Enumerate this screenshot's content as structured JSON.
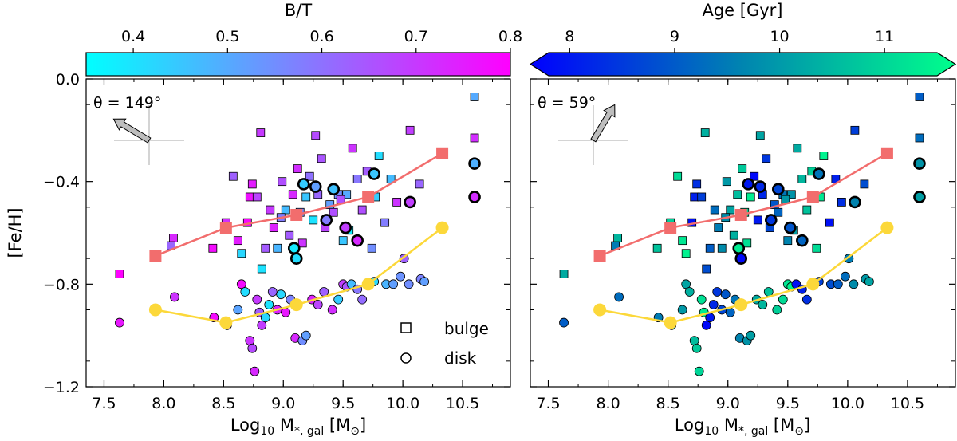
{
  "chart_data": [
    {
      "type": "scatter",
      "panel": "left",
      "xlabel_main": "Log",
      "xlabel_sub": "10",
      "xlabel_mid": " M",
      "xlabel_sub2": "*, gal",
      "xlabel_unit_open": " [M",
      "xlabel_unit_sub": "⊙",
      "xlabel_unit_close": "]",
      "ylabel": "[Fe/H]",
      "xlim": [
        7.35,
        10.9
      ],
      "ylim": [
        -1.2,
        0.0
      ],
      "xticks": [
        "7.5",
        "8.0",
        "8.5",
        "9.0",
        "9.5",
        "10.0",
        "10.5"
      ],
      "xtick_values": [
        7.5,
        8.0,
        8.5,
        9.0,
        9.5,
        10.0,
        10.5
      ],
      "yticks": [
        "0.0",
        "−0.4",
        "−0.8",
        "−1.2"
      ],
      "ytick_values": [
        0.0,
        -0.4,
        -0.8,
        -1.2
      ],
      "colorbar": {
        "label": "B/T",
        "ticks": [
          "0.4",
          "0.5",
          "0.6",
          "0.7",
          "0.8"
        ],
        "tick_values": [
          0.4,
          0.5,
          0.6,
          0.7,
          0.8
        ],
        "range": [
          0.35,
          0.8
        ],
        "colors": [
          "#00ffff",
          "#ff00ff"
        ],
        "extend": false
      },
      "annotation": "θ = 149°",
      "angle_deg": 149,
      "legend": [
        {
          "marker": "square",
          "label": "bulge"
        },
        {
          "marker": "circle",
          "label": "disk"
        }
      ],
      "bulge_points": [
        [
          7.63,
          -0.76,
          0.8
        ],
        [
          8.08,
          -0.62,
          0.73
        ],
        [
          8.41,
          -0.66,
          0.78
        ],
        [
          8.52,
          -0.56,
          0.72
        ],
        [
          8.58,
          -0.38,
          0.63
        ],
        [
          8.62,
          -0.63,
          0.75
        ],
        [
          8.65,
          -0.68,
          0.42
        ],
        [
          8.7,
          -0.56,
          0.79
        ],
        [
          8.72,
          -0.46,
          0.77
        ],
        [
          8.74,
          -0.41,
          0.75
        ],
        [
          8.78,
          -0.46,
          0.68
        ],
        [
          8.82,
          -0.74,
          0.4
        ],
        [
          8.85,
          -0.66,
          0.64
        ],
        [
          8.89,
          -0.51,
          0.7
        ],
        [
          8.92,
          -0.58,
          0.74
        ],
        [
          8.95,
          -0.66,
          0.48
        ],
        [
          8.99,
          -0.4,
          0.66
        ],
        [
          9.02,
          -0.51,
          0.47
        ],
        [
          9.05,
          -0.61,
          0.64
        ],
        [
          9.08,
          -0.45,
          0.73
        ],
        [
          9.12,
          -0.35,
          0.72
        ],
        [
          9.14,
          -0.52,
          0.55
        ],
        [
          9.16,
          -0.64,
          0.71
        ],
        [
          9.19,
          -0.46,
          0.45
        ],
        [
          9.22,
          -0.38,
          0.6
        ],
        [
          9.25,
          -0.55,
          0.4
        ],
        [
          9.29,
          -0.45,
          0.62
        ],
        [
          9.32,
          -0.31,
          0.65
        ],
        [
          9.35,
          -0.58,
          0.68
        ],
        [
          9.39,
          -0.49,
          0.52
        ],
        [
          9.42,
          -0.52,
          0.66
        ],
        [
          9.46,
          -0.45,
          0.55
        ],
        [
          9.5,
          -0.63,
          0.45
        ],
        [
          9.53,
          -0.45,
          0.5
        ],
        [
          9.55,
          -0.59,
          0.38
        ],
        [
          9.58,
          -0.27,
          0.71
        ],
        [
          9.62,
          -0.39,
          0.59
        ],
        [
          9.66,
          -0.51,
          0.66
        ],
        [
          9.7,
          -0.36,
          0.64
        ],
        [
          9.74,
          -0.66,
          0.55
        ],
        [
          9.77,
          -0.46,
          0.44
        ],
        [
          9.8,
          -0.3,
          0.41
        ],
        [
          9.85,
          -0.56,
          0.58
        ],
        [
          9.9,
          -0.39,
          0.47
        ],
        [
          9.95,
          -0.48,
          0.71
        ],
        [
          10.06,
          -0.2,
          0.69
        ],
        [
          10.14,
          -0.41,
          0.62
        ],
        [
          10.6,
          -0.07,
          0.5
        ],
        [
          10.6,
          -0.23,
          0.72
        ],
        [
          8.06,
          -0.65,
          0.62
        ],
        [
          8.98,
          -0.54,
          0.58
        ],
        [
          9.48,
          -0.47,
          0.66
        ],
        [
          9.27,
          -0.22,
          0.67
        ],
        [
          8.81,
          -0.21,
          0.7
        ]
      ],
      "disk_points": [
        [
          7.63,
          -0.95,
          0.76
        ],
        [
          8.09,
          -0.85,
          0.71
        ],
        [
          8.42,
          -0.93,
          0.78
        ],
        [
          8.53,
          -0.96,
          0.66
        ],
        [
          8.62,
          -0.9,
          0.51
        ],
        [
          8.65,
          -0.8,
          0.78
        ],
        [
          8.68,
          -0.83,
          0.41
        ],
        [
          8.72,
          -1.02,
          0.71
        ],
        [
          8.74,
          -1.05,
          0.67
        ],
        [
          8.76,
          -1.14,
          0.73
        ],
        [
          8.78,
          -0.86,
          0.7
        ],
        [
          8.8,
          -0.91,
          0.64
        ],
        [
          8.82,
          -0.96,
          0.69
        ],
        [
          8.85,
          -0.93,
          0.42
        ],
        [
          8.88,
          -0.88,
          0.4
        ],
        [
          8.91,
          -0.83,
          0.62
        ],
        [
          8.95,
          -0.9,
          0.74
        ],
        [
          8.98,
          -0.84,
          0.42
        ],
        [
          9.02,
          -0.91,
          0.76
        ],
        [
          9.06,
          -0.86,
          0.57
        ],
        [
          9.1,
          -1.01,
          0.73
        ],
        [
          9.16,
          -1.02,
          0.55
        ],
        [
          9.19,
          -1.0,
          0.52
        ],
        [
          9.24,
          -0.86,
          0.74
        ],
        [
          9.29,
          -0.88,
          0.68
        ],
        [
          9.34,
          -0.83,
          0.63
        ],
        [
          9.41,
          -0.9,
          0.72
        ],
        [
          9.46,
          -0.86,
          0.44
        ],
        [
          9.5,
          -0.8,
          0.69
        ],
        [
          9.53,
          -0.81,
          0.65
        ],
        [
          9.57,
          -0.8,
          0.47
        ],
        [
          9.62,
          -0.82,
          0.59
        ],
        [
          9.66,
          -0.86,
          0.61
        ],
        [
          9.76,
          -0.79,
          0.42
        ],
        [
          9.86,
          -0.8,
          0.48
        ],
        [
          9.92,
          -0.8,
          0.52
        ],
        [
          9.98,
          -0.77,
          0.54
        ],
        [
          10.01,
          -0.7,
          0.63
        ],
        [
          10.05,
          -0.8,
          0.55
        ],
        [
          10.15,
          -0.78,
          0.57
        ],
        [
          10.18,
          -0.79,
          0.52
        ]
      ],
      "disk_outlined": [
        [
          9.09,
          -0.66,
          0.39
        ],
        [
          9.11,
          -0.7,
          0.41
        ],
        [
          9.17,
          -0.41,
          0.44
        ],
        [
          9.27,
          -0.42,
          0.52
        ],
        [
          9.36,
          -0.55,
          0.58
        ],
        [
          9.42,
          -0.43,
          0.46
        ],
        [
          9.52,
          -0.58,
          0.69
        ],
        [
          9.62,
          -0.63,
          0.73
        ],
        [
          9.76,
          -0.37,
          0.45
        ],
        [
          10.06,
          -0.48,
          0.69
        ],
        [
          10.6,
          -0.33,
          0.49
        ],
        [
          10.6,
          -0.46,
          0.72
        ]
      ],
      "bulge_median": {
        "name": "",
        "color": "#f26d6d",
        "x": [
          7.93,
          8.52,
          9.11,
          9.71,
          10.33
        ],
        "y": [
          -0.69,
          -0.58,
          -0.53,
          -0.46,
          -0.29
        ]
      },
      "disk_median": {
        "name": "",
        "color": "#fcd83a",
        "x": [
          7.93,
          8.52,
          9.11,
          9.71,
          10.33
        ],
        "y": [
          -0.9,
          -0.95,
          -0.88,
          -0.8,
          -0.58
        ]
      }
    },
    {
      "type": "scatter",
      "panel": "right",
      "xlabel_main": "Log",
      "xlabel_sub": "10",
      "xlabel_mid": " M",
      "xlabel_sub2": "*, gal",
      "xlabel_unit_open": " [M",
      "xlabel_unit_sub": "⊙",
      "xlabel_unit_close": "]",
      "xlim": [
        7.35,
        10.9
      ],
      "ylim": [
        -1.2,
        0.0
      ],
      "xticks": [
        "7.5",
        "8.0",
        "8.5",
        "9.0",
        "9.5",
        "10.0",
        "10.5"
      ],
      "xtick_values": [
        7.5,
        8.0,
        8.5,
        9.0,
        9.5,
        10.0,
        10.5
      ],
      "colorbar": {
        "label": "Age [Gyr]",
        "ticks": [
          "8",
          "9",
          "10",
          "11"
        ],
        "tick_values": [
          8,
          9,
          10,
          11
        ],
        "range": [
          7.8,
          11.5
        ],
        "colors": [
          "#0000ff",
          "#008fa8",
          "#00ff8c"
        ],
        "extend": true
      },
      "annotation": "θ = 59°",
      "angle_deg": 59
    }
  ]
}
